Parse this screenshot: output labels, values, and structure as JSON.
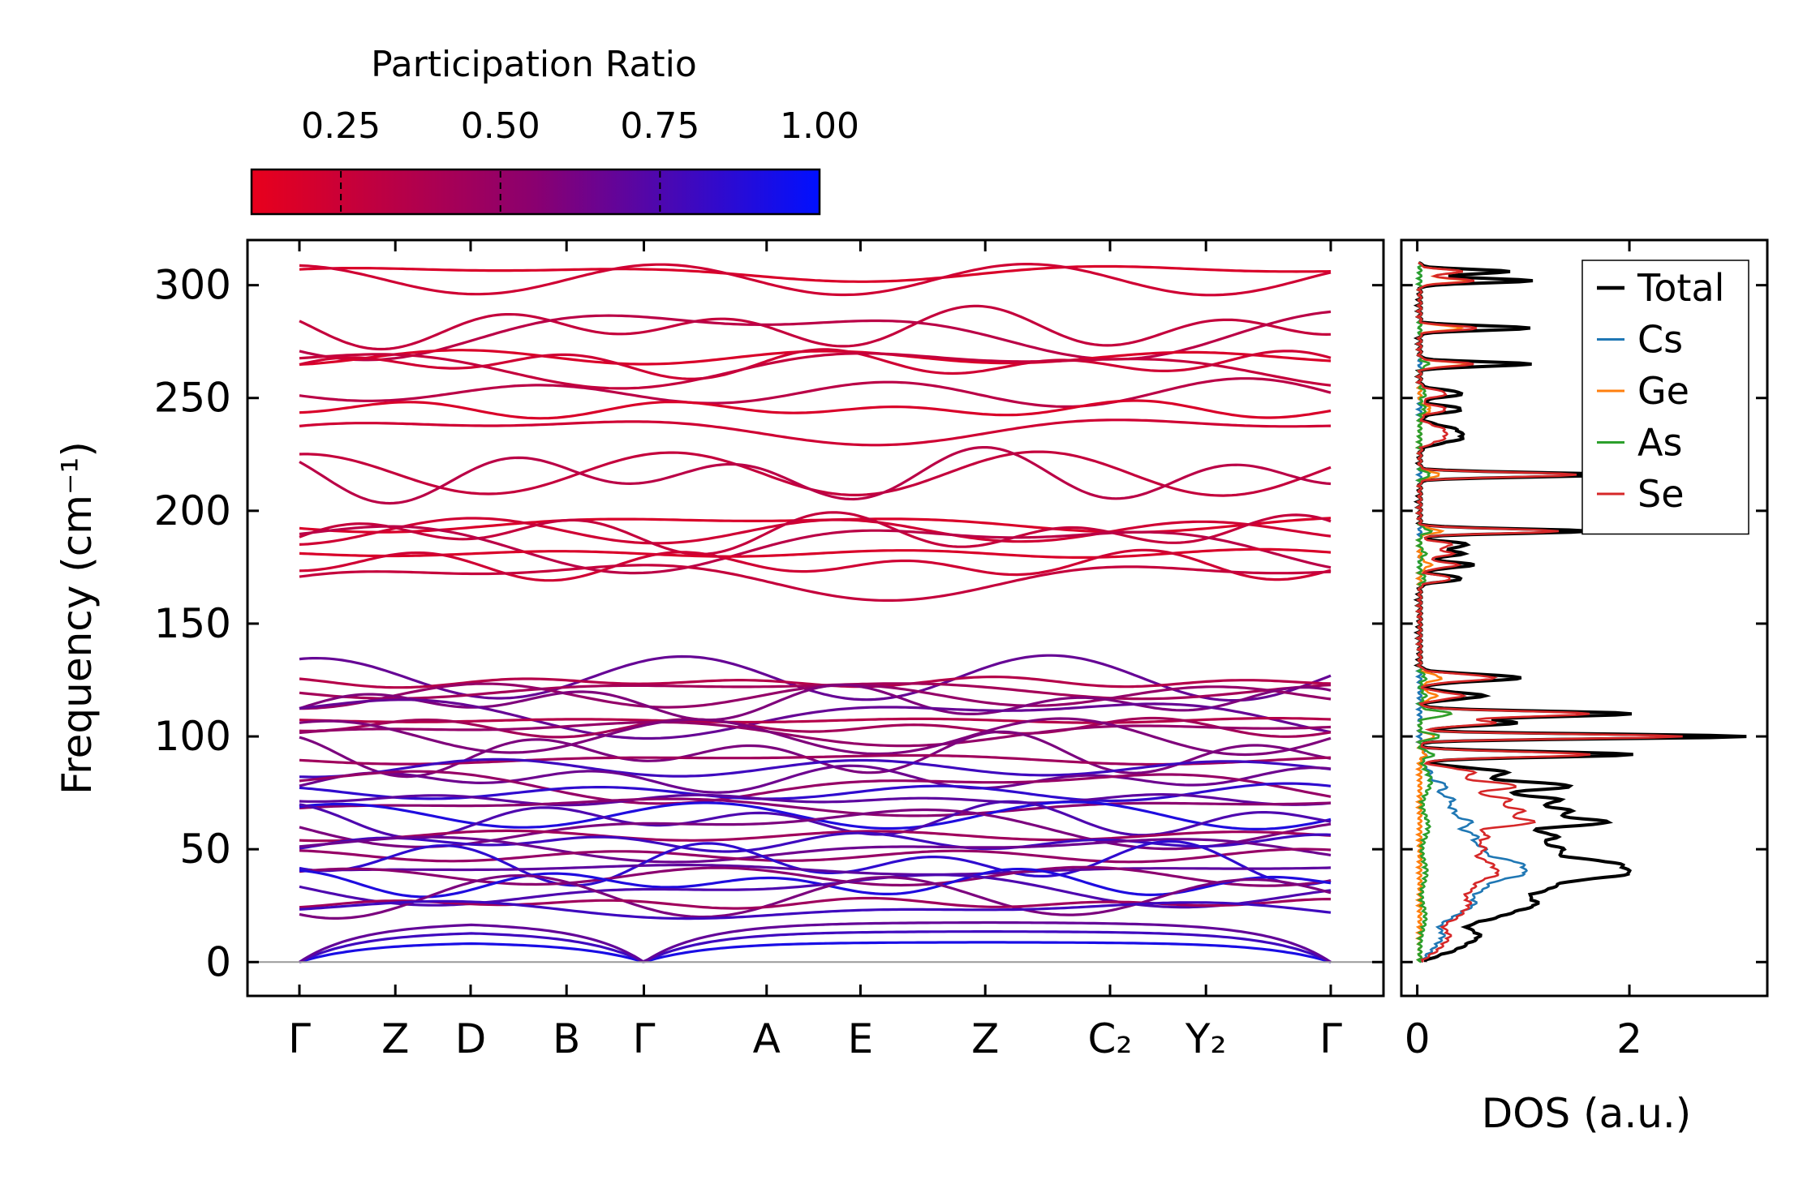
{
  "chart_data": [
    {
      "type": "line",
      "subtype": "phonon-band-structure",
      "title": "",
      "xlabel": "",
      "ylabel": "Frequency (cm⁻¹)",
      "ylim": [
        -15,
        320
      ],
      "yticks": [
        0,
        50,
        100,
        150,
        200,
        250,
        300
      ],
      "kpoint_labels": [
        "Γ",
        "Z",
        "D",
        "B",
        "Γ",
        "A",
        "E",
        "Z",
        "C₂",
        "Y₂",
        "Γ"
      ],
      "kpoint_positions": [
        0,
        0.93,
        1.66,
        2.59,
        3.34,
        4.53,
        5.44,
        6.65,
        7.86,
        8.79,
        10.0
      ],
      "colorbar": {
        "label": "Participation Ratio",
        "range": [
          0.11,
          1.0
        ],
        "ticks": [
          "0.25",
          "0.50",
          "0.75",
          "1.00"
        ],
        "tick_values": [
          0.25,
          0.5,
          0.75,
          1.0
        ],
        "color_low": "#e8001c",
        "color_mid": "#8a0070",
        "color_high": "#0010ff"
      },
      "zero_line_color": "#999999",
      "optical_bands_cm1": [
        305.5,
        302.5,
        281,
        279.5,
        268,
        265,
        264,
        252,
        245,
        236,
        216.5,
        215.5,
        194.5,
        191,
        190,
        185,
        181,
        176,
        170,
        126,
        124,
        121,
        118,
        115,
        109,
        107,
        104,
        102,
        100,
        92,
        90,
        86,
        81,
        78,
        75,
        72,
        69,
        65,
        63,
        60,
        56,
        53,
        50,
        47,
        44,
        41,
        38,
        35,
        32,
        29,
        26,
        23
      ],
      "acoustic_max_cm1": 16
    },
    {
      "type": "line",
      "subtype": "density-of-states",
      "xlabel": "DOS (a.u.)",
      "ylabel": "",
      "xlim": [
        -0.15,
        3.3
      ],
      "xticks": [
        "0",
        "2"
      ],
      "xtick_values": [
        0,
        2
      ],
      "ylim": [
        -15,
        320
      ],
      "legend": {
        "position": "top-right",
        "entries": [
          {
            "name": "Total",
            "color": "#000000"
          },
          {
            "name": "Cs",
            "color": "#1f77b4"
          },
          {
            "name": "Ge",
            "color": "#ff7f0e"
          },
          {
            "name": "As",
            "color": "#2ca02c"
          },
          {
            "name": "Se",
            "color": "#d62728"
          }
        ]
      },
      "series": [
        {
          "name": "Total",
          "peaks_freq": [
            6,
            12,
            20,
            26,
            33,
            39,
            44,
            50,
            56,
            62,
            67,
            72,
            78,
            84,
            92,
            100,
            106,
            110,
            118,
            126,
            170,
            176,
            181,
            185,
            191,
            216,
            232,
            236,
            245,
            252,
            265,
            281,
            302,
            306
          ],
          "peaks_dos": [
            0.3,
            0.5,
            0.6,
            0.95,
            1.1,
            1.6,
            1.55,
            1.2,
            1.2,
            1.65,
            1.3,
            1.25,
            1.4,
            0.8,
            2.0,
            3.1,
            0.9,
            2.0,
            0.6,
            0.95,
            0.4,
            0.5,
            0.4,
            0.45,
            1.6,
            1.8,
            0.35,
            0.3,
            0.4,
            0.4,
            1.05,
            1.05,
            1.05,
            0.85
          ],
          "widths": [
            3,
            3,
            3,
            3,
            3,
            2.5,
            2.5,
            2.5,
            2.5,
            2,
            2,
            2,
            2,
            2,
            1.2,
            1,
            1.3,
            1.2,
            1.5,
            1.5,
            1.3,
            1.3,
            1.3,
            1.3,
            1,
            1,
            2,
            2,
            1.5,
            1.5,
            1,
            1,
            1,
            1
          ]
        },
        {
          "name": "Cs",
          "peaks_freq": [
            6,
            12,
            20,
            26,
            33,
            39,
            44,
            50,
            56,
            62,
            67,
            72,
            78,
            84,
            92
          ],
          "peaks_dos": [
            0.1,
            0.2,
            0.25,
            0.45,
            0.55,
            0.8,
            0.8,
            0.55,
            0.5,
            0.45,
            0.3,
            0.3,
            0.25,
            0.1,
            0.05
          ],
          "widths": [
            3,
            3,
            3,
            3,
            3,
            2.5,
            2.5,
            2.5,
            2.5,
            2,
            2,
            2,
            2,
            2,
            2
          ]
        },
        {
          "name": "Ge",
          "peaks_freq": [
            92,
            100,
            110,
            118,
            126,
            176,
            191,
            216,
            245,
            265,
            281,
            302,
            306
          ],
          "peaks_dos": [
            0.05,
            0.15,
            0.3,
            0.15,
            0.2,
            0.1,
            0.2,
            0.2,
            0.1,
            0.45,
            0.4,
            0.45,
            0.4
          ],
          "widths": [
            1.2,
            1,
            1.2,
            1.5,
            1.5,
            1.3,
            1,
            1,
            1.5,
            1,
            1,
            1,
            1
          ]
        },
        {
          "name": "As",
          "peaks_freq": [
            20,
            40,
            60,
            80,
            92,
            100,
            110,
            118,
            126,
            170,
            181,
            191,
            216,
            245,
            252,
            265
          ],
          "peaks_dos": [
            0.05,
            0.06,
            0.08,
            0.1,
            0.12,
            0.2,
            0.3,
            0.05,
            0.05,
            0.05,
            0.05,
            0.1,
            0.1,
            0.05,
            0.05,
            0.08
          ],
          "widths": [
            5,
            5,
            5,
            5,
            1.2,
            1,
            1.2,
            1.5,
            1.5,
            1.3,
            1.3,
            1,
            1,
            1.5,
            1.5,
            1
          ]
        },
        {
          "name": "Se",
          "peaks_freq": [
            6,
            12,
            20,
            26,
            33,
            39,
            44,
            50,
            56,
            62,
            67,
            72,
            78,
            84,
            92,
            100,
            106,
            110,
            118,
            126,
            170,
            176,
            181,
            185,
            191,
            216,
            232,
            236,
            245,
            252,
            265,
            281,
            302,
            306
          ],
          "peaks_dos": [
            0.15,
            0.25,
            0.3,
            0.4,
            0.45,
            0.6,
            0.55,
            0.55,
            0.6,
            1.0,
            0.9,
            0.8,
            0.9,
            0.5,
            1.6,
            2.5,
            0.7,
            1.6,
            0.4,
            0.7,
            0.3,
            0.35,
            0.3,
            0.3,
            1.3,
            1.5,
            0.2,
            0.2,
            0.25,
            0.25,
            0.5,
            0.55,
            0.5,
            0.4
          ],
          "widths": [
            3,
            3,
            3,
            3,
            3,
            2.5,
            2.5,
            2.5,
            2.5,
            2,
            2,
            2,
            2,
            2,
            1.2,
            1,
            1.3,
            1.2,
            1.5,
            1.5,
            1.3,
            1.3,
            1.3,
            1.3,
            1,
            1,
            2,
            2,
            1.5,
            1.5,
            1,
            1,
            1,
            1
          ]
        }
      ]
    }
  ]
}
